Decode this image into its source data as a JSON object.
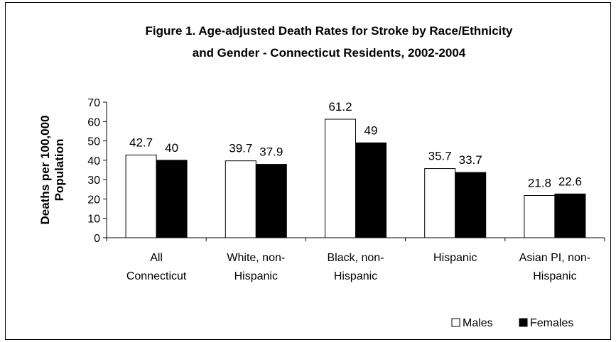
{
  "chart_data": {
    "type": "bar",
    "title": "Figure 1. Age-adjusted Death Rates for Stroke by Race/Ethnicity and Gender - Connecticut Residents, 2002-2004",
    "title_lines": [
      "Figure 1. Age-adjusted Death Rates for Stroke by Race/Ethnicity",
      "and Gender - Connecticut Residents, 2002-2004"
    ],
    "ylabel": "Deaths per 100,000 Population",
    "ylabel_lines": [
      "Deaths per 100,000",
      "Population"
    ],
    "xlabel": "",
    "ylim": [
      0,
      70
    ],
    "yticks": [
      0,
      10,
      20,
      30,
      40,
      50,
      60,
      70
    ],
    "grid": false,
    "legend_position": "bottom-right",
    "categories": [
      [
        "All",
        "Connecticut"
      ],
      [
        "White, non-",
        "Hispanic"
      ],
      [
        "Black, non-",
        "Hispanic"
      ],
      [
        "Hispanic"
      ],
      [
        "Asian PI, non-",
        "Hispanic"
      ]
    ],
    "series": [
      {
        "name": "Males",
        "color": "#ffffff",
        "values": [
          42.7,
          39.7,
          61.2,
          35.7,
          21.8
        ]
      },
      {
        "name": "Females",
        "color": "#000000",
        "values": [
          40,
          37.9,
          49,
          33.7,
          22.6
        ]
      }
    ]
  }
}
